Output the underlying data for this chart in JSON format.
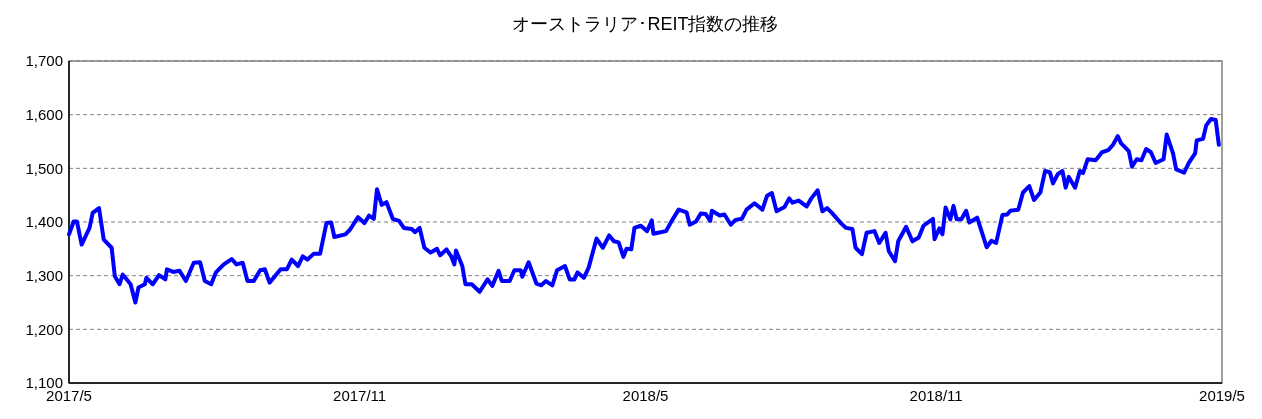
{
  "chart_data": {
    "type": "line",
    "title": "オーストラリア･REIT指数の推移",
    "xlim": [
      "2017-05-01",
      "2019-05-01"
    ],
    "xticks": [
      {
        "value": "2017-05-01",
        "label": "2017/5"
      },
      {
        "value": "2017-11-01",
        "label": "2017/11"
      },
      {
        "value": "2018-05-01",
        "label": "2018/5"
      },
      {
        "value": "2018-11-01",
        "label": "2018/11"
      },
      {
        "value": "2019-05-01",
        "label": "2019/5"
      }
    ],
    "ylim": [
      1100,
      1700
    ],
    "yticks": [
      {
        "value": 1100,
        "label": "1,100"
      },
      {
        "value": 1200,
        "label": "1,200"
      },
      {
        "value": 1300,
        "label": "1,300"
      },
      {
        "value": 1400,
        "label": "1,400"
      },
      {
        "value": 1500,
        "label": "1,500"
      },
      {
        "value": 1600,
        "label": "1,600"
      },
      {
        "value": 1700,
        "label": "1,700"
      }
    ],
    "grid": "y",
    "marker": "none",
    "line_style": "solid",
    "series": [
      {
        "color": "#0000ff",
        "x": [
          "2017-05-01",
          "2017-05-04",
          "2017-05-06",
          "2017-05-09",
          "2017-05-14",
          "2017-05-16",
          "2017-05-20",
          "2017-05-23",
          "2017-05-28",
          "2017-05-30",
          "2017-06-02",
          "2017-06-04",
          "2017-06-09",
          "2017-06-12",
          "2017-06-14",
          "2017-06-18",
          "2017-06-19",
          "2017-06-23",
          "2017-06-27",
          "2017-07-01",
          "2017-07-02",
          "2017-07-06",
          "2017-07-10",
          "2017-07-14",
          "2017-07-19",
          "2017-07-23",
          "2017-07-26",
          "2017-07-30",
          "2017-08-02",
          "2017-08-07",
          "2017-08-12",
          "2017-08-15",
          "2017-08-19",
          "2017-08-22",
          "2017-08-26",
          "2017-08-30",
          "2017-09-02",
          "2017-09-05",
          "2017-09-12",
          "2017-09-16",
          "2017-09-19",
          "2017-09-23",
          "2017-09-26",
          "2017-09-29",
          "2017-10-03",
          "2017-10-07",
          "2017-10-11",
          "2017-10-14",
          "2017-10-16",
          "2017-10-23",
          "2017-10-26",
          "2017-10-31",
          "2017-11-04",
          "2017-11-07",
          "2017-11-10",
          "2017-11-12",
          "2017-11-15",
          "2017-11-18",
          "2017-11-22",
          "2017-11-26",
          "2017-11-29",
          "2017-12-04",
          "2017-12-06",
          "2017-12-09",
          "2017-12-12",
          "2017-12-16",
          "2017-12-20",
          "2017-12-22",
          "2017-12-26",
          "2017-12-29",
          "2017-12-31",
          "2018-01-01",
          "2018-01-05",
          "2018-01-07",
          "2018-01-11",
          "2018-01-16",
          "2018-01-21",
          "2018-01-24",
          "2018-01-28",
          "2018-01-30",
          "2018-02-04",
          "2018-02-07",
          "2018-02-11",
          "2018-02-12",
          "2018-02-16",
          "2018-02-21",
          "2018-02-24",
          "2018-02-27",
          "2018-03-03",
          "2018-03-06",
          "2018-03-11",
          "2018-03-14",
          "2018-03-17",
          "2018-03-19",
          "2018-03-23",
          "2018-03-26",
          "2018-03-31",
          "2018-04-04",
          "2018-04-08",
          "2018-04-11",
          "2018-04-14",
          "2018-04-17",
          "2018-04-19",
          "2018-04-22",
          "2018-04-24",
          "2018-04-28",
          "2018-05-02",
          "2018-05-05",
          "2018-05-06",
          "2018-05-09",
          "2018-05-14",
          "2018-05-18",
          "2018-05-22",
          "2018-05-27",
          "2018-05-29",
          "2018-06-02",
          "2018-06-05",
          "2018-06-08",
          "2018-06-11",
          "2018-06-12",
          "2018-06-17",
          "2018-06-20",
          "2018-06-24",
          "2018-06-27",
          "2018-07-01",
          "2018-07-04",
          "2018-07-09",
          "2018-07-14",
          "2018-07-17",
          "2018-07-20",
          "2018-07-23",
          "2018-07-28",
          "2018-07-31",
          "2018-08-02",
          "2018-08-06",
          "2018-08-11",
          "2018-08-14",
          "2018-08-18",
          "2018-08-21",
          "2018-08-24",
          "2018-08-27",
          "2018-09-02",
          "2018-09-05",
          "2018-09-09",
          "2018-09-11",
          "2018-09-15",
          "2018-09-18",
          "2018-09-23",
          "2018-09-26",
          "2018-09-30",
          "2018-10-02",
          "2018-10-06",
          "2018-10-08",
          "2018-10-13",
          "2018-10-17",
          "2018-10-21",
          "2018-10-24",
          "2018-10-30",
          "2018-10-31",
          "2018-11-03",
          "2018-11-05",
          "2018-11-07",
          "2018-11-10",
          "2018-11-12",
          "2018-11-14",
          "2018-11-17",
          "2018-11-20",
          "2018-11-22",
          "2018-11-27",
          "2018-12-03",
          "2018-12-06",
          "2018-12-09",
          "2018-12-13",
          "2018-12-16",
          "2018-12-18",
          "2018-12-23",
          "2018-12-26",
          "2018-12-30",
          "2019-01-02",
          "2019-01-06",
          "2019-01-09",
          "2019-01-12",
          "2019-01-14",
          "2019-01-17",
          "2019-01-20",
          "2019-01-22",
          "2019-01-24",
          "2019-01-28",
          "2019-01-31",
          "2019-02-02",
          "2019-02-05",
          "2019-02-10",
          "2019-02-14",
          "2019-02-18",
          "2019-02-21",
          "2019-02-24",
          "2019-02-26",
          "2019-03-03",
          "2019-03-05",
          "2019-03-08",
          "2019-03-11",
          "2019-03-14",
          "2019-03-17",
          "2019-03-20",
          "2019-03-25",
          "2019-03-27",
          "2019-03-31",
          "2019-04-02",
          "2019-04-07",
          "2019-04-10",
          "2019-04-14",
          "2019-04-15",
          "2019-04-19",
          "2019-04-21",
          "2019-04-24",
          "2019-04-27",
          "2019-04-29"
        ],
        "values": [
          1377,
          1401,
          1401,
          1358,
          1389,
          1417,
          1426,
          1367,
          1352,
          1299,
          1284,
          1302,
          1284,
          1250,
          1278,
          1284,
          1296,
          1284,
          1301,
          1293,
          1312,
          1307,
          1309,
          1290,
          1324,
          1325,
          1290,
          1284,
          1306,
          1321,
          1331,
          1321,
          1324,
          1290,
          1290,
          1310,
          1312,
          1287,
          1312,
          1312,
          1330,
          1318,
          1336,
          1330,
          1341,
          1341,
          1398,
          1399,
          1372,
          1377,
          1386,
          1409,
          1398,
          1412,
          1406,
          1461,
          1432,
          1437,
          1406,
          1402,
          1389,
          1387,
          1381,
          1389,
          1352,
          1343,
          1350,
          1338,
          1349,
          1336,
          1321,
          1347,
          1318,
          1284,
          1284,
          1270,
          1293,
          1281,
          1309,
          1290,
          1290,
          1310,
          1310,
          1298,
          1325,
          1285,
          1282,
          1290,
          1282,
          1310,
          1318,
          1293,
          1293,
          1306,
          1296,
          1315,
          1369,
          1352,
          1375,
          1364,
          1362,
          1335,
          1350,
          1349,
          1389,
          1393,
          1383,
          1403,
          1378,
          1380,
          1383,
          1404,
          1423,
          1418,
          1395,
          1401,
          1416,
          1415,
          1402,
          1421,
          1412,
          1414,
          1395,
          1404,
          1406,
          1423,
          1435,
          1423,
          1449,
          1454,
          1420,
          1428,
          1444,
          1436,
          1440,
          1429,
          1444,
          1459,
          1420,
          1426,
          1417,
          1397,
          1389,
          1387,
          1352,
          1340,
          1380,
          1383,
          1361,
          1380,
          1346,
          1327,
          1364,
          1391,
          1364,
          1371,
          1393,
          1406,
          1368,
          1388,
          1377,
          1427,
          1405,
          1430,
          1405,
          1405,
          1421,
          1399,
          1408,
          1353,
          1365,
          1361,
          1413,
          1414,
          1421,
          1423,
          1455,
          1467,
          1441,
          1455,
          1495,
          1493,
          1472,
          1489,
          1495,
          1464,
          1484,
          1464,
          1495,
          1491,
          1517,
          1515,
          1530,
          1534,
          1544,
          1560,
          1547,
          1532,
          1503,
          1517,
          1515,
          1536,
          1530,
          1510,
          1517,
          1563,
          1528,
          1498,
          1492,
          1510,
          1528,
          1552,
          1555,
          1580,
          1592,
          1590,
          1544
        ]
      }
    ]
  }
}
